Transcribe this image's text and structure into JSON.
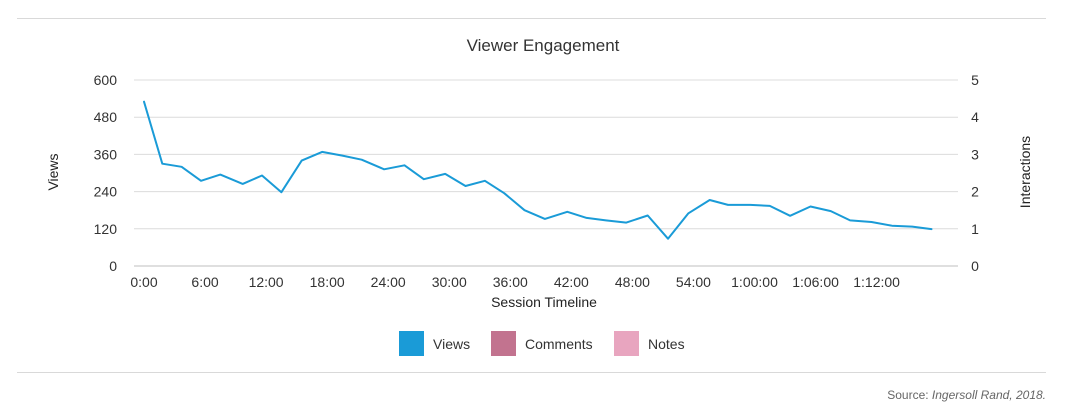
{
  "chart_data": {
    "type": "line",
    "title": "Viewer Engagement",
    "xlabel": "Session Timeline",
    "ylabel": "Views",
    "y2label": "Interactions",
    "xlim": [
      0,
      80
    ],
    "ylim": [
      0,
      600
    ],
    "y2lim": [
      0,
      5
    ],
    "y_ticks": [
      0,
      120,
      240,
      360,
      480,
      600
    ],
    "y2_ticks": [
      0,
      1,
      2,
      3,
      4,
      5
    ],
    "x_tick_values": [
      0,
      6,
      12,
      18,
      24,
      30,
      36,
      42,
      48,
      54,
      60,
      66,
      72
    ],
    "x_tick_labels": [
      "0:00",
      "6:00",
      "12:00",
      "18:00",
      "24:00",
      "30:00",
      "36:00",
      "42:00",
      "48:00",
      "54:00",
      "1:00:00",
      "1:06:00",
      "1:12:00"
    ],
    "grid": true,
    "legend_position": "bottom",
    "series": [
      {
        "name": "Views",
        "color": "#1a9bd7",
        "x": [
          0,
          1.8,
          3.7,
          5.6,
          7.5,
          9.7,
          11.6,
          13.5,
          15.5,
          17.5,
          19.5,
          21.4,
          23.6,
          25.6,
          27.5,
          29.6,
          31.6,
          33.5,
          35.4,
          37.4,
          39.4,
          41.6,
          43.5,
          45.4,
          47.4,
          49.5,
          51.5,
          53.5,
          55.6,
          57.4,
          59.6,
          61.5,
          63.5,
          65.5,
          67.5,
          69.4,
          71.5,
          73.5,
          75.5,
          77.4
        ],
        "y": [
          530,
          330,
          320,
          275,
          295,
          265,
          292,
          238,
          340,
          368,
          356,
          343,
          312,
          325,
          280,
          297,
          258,
          275,
          235,
          180,
          152,
          175,
          155,
          147,
          140,
          163,
          88,
          170,
          213,
          197,
          197,
          194,
          162,
          192,
          177,
          147,
          142,
          130,
          127,
          119
        ]
      },
      {
        "name": "Comments",
        "color": "#c2738f",
        "x": [],
        "y": []
      },
      {
        "name": "Notes",
        "color": "#e8a5bf",
        "x": [],
        "y": []
      }
    ]
  },
  "source": {
    "prefix": "Source: ",
    "name": "Ingersoll Rand, 2018."
  }
}
